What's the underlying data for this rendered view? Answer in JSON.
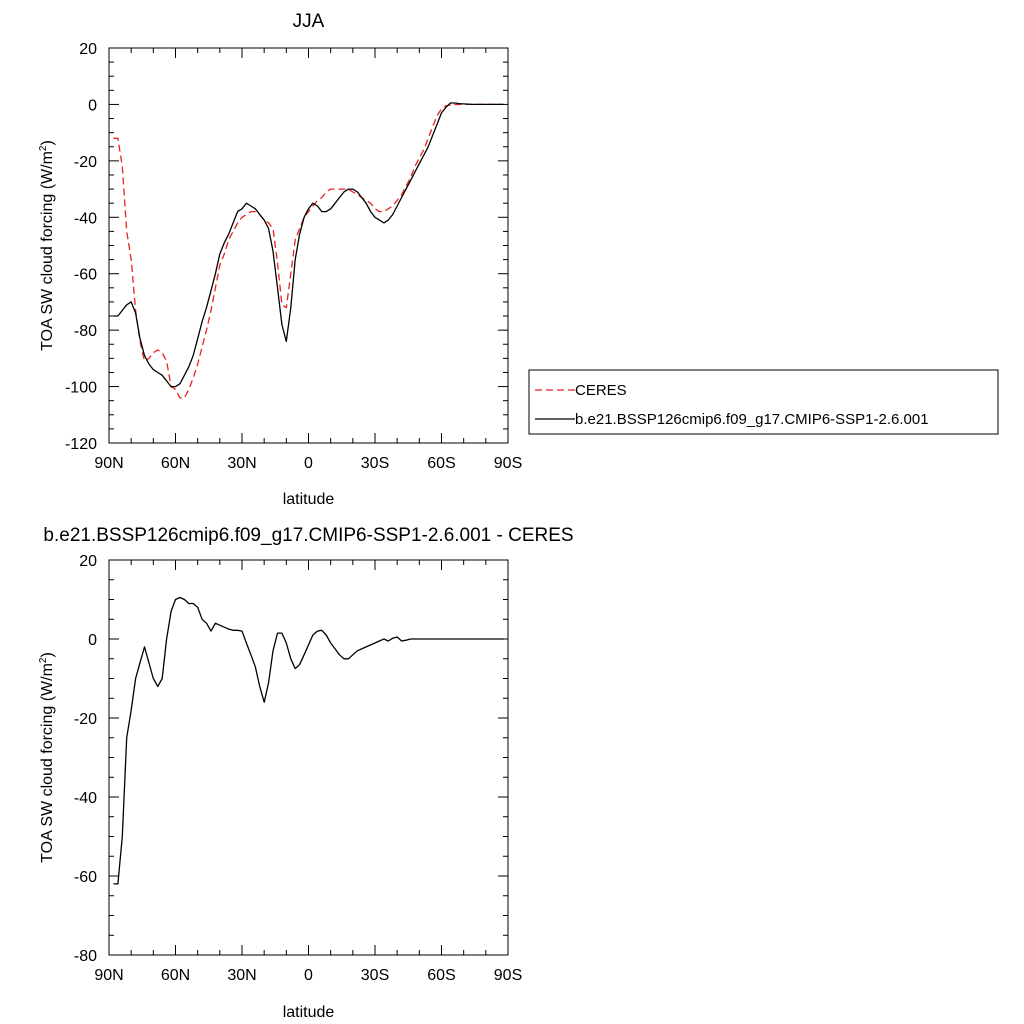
{
  "chart_data": [
    {
      "type": "line",
      "title": "JJA",
      "xlabel": "latitude",
      "ylabel": "TOA SW cloud forcing (W/m",
      "ylabel_sup": "2",
      "ylabel_close": ")",
      "xlim": [
        90,
        -90
      ],
      "ylim": [
        -120,
        20
      ],
      "xticks": [
        90,
        60,
        30,
        0,
        -30,
        -60,
        -90
      ],
      "xtick_labels": [
        "90N",
        "60N",
        "30N",
        "0",
        "30S",
        "60S",
        "90S"
      ],
      "yticks": [
        -120,
        -100,
        -80,
        -60,
        -40,
        -20,
        0,
        20
      ],
      "ytick_labels": [
        "-120",
        "-100",
        "-80",
        "-60",
        "-40",
        "-20",
        "0",
        "20"
      ],
      "legend": "right",
      "series": [
        {
          "name": "CERES",
          "color": "#e8231f",
          "dash": "dashed",
          "x": [
            88,
            86,
            84,
            82,
            80,
            78,
            76,
            74,
            72,
            70,
            68,
            66,
            64,
            62,
            60,
            58,
            56,
            54,
            52,
            50,
            48,
            46,
            44,
            42,
            40,
            38,
            36,
            34,
            32,
            30,
            28,
            26,
            24,
            22,
            20,
            18,
            16,
            14,
            12,
            10,
            8,
            6,
            4,
            2,
            0,
            -2,
            -4,
            -6,
            -8,
            -10,
            -12,
            -14,
            -16,
            -18,
            -20,
            -22,
            -24,
            -26,
            -28,
            -30,
            -32,
            -34,
            -36,
            -38,
            -40,
            -42,
            -44,
            -46,
            -48,
            -50,
            -52,
            -54,
            -56,
            -58,
            -60,
            -62,
            -64,
            -66,
            -68,
            -70,
            -72,
            -74,
            -76,
            -78,
            -80,
            -82,
            -84,
            -86,
            -88
          ],
          "values": [
            -12,
            -12,
            -22,
            -45,
            -55,
            -73,
            -84,
            -91,
            -90,
            -88,
            -87,
            -88,
            -91,
            -100,
            -101,
            -104,
            -104,
            -101,
            -97,
            -92,
            -86,
            -80,
            -73,
            -65,
            -57,
            -53,
            -48,
            -45,
            -42,
            -40,
            -39,
            -38,
            -38,
            -39,
            -41,
            -42,
            -44,
            -56,
            -71,
            -72,
            -60,
            -48,
            -44,
            -40,
            -38,
            -36,
            -34,
            -33,
            -31,
            -30,
            -30,
            -30,
            -30,
            -30,
            -31,
            -32,
            -33,
            -34,
            -35,
            -37,
            -38,
            -38,
            -37,
            -36,
            -34,
            -32,
            -29,
            -26,
            -22,
            -19,
            -16,
            -12,
            -8,
            -4,
            -1.5,
            -0.5,
            -0.2,
            -0.1,
            0,
            0,
            0,
            0,
            0,
            0,
            0,
            0,
            0,
            0,
            0
          ]
        },
        {
          "name": "b.e21.BSSP126cmip6.f09_g17.CMIP6-SSP1-2.6.001",
          "color": "#000000",
          "dash": "solid",
          "x": [
            88,
            86,
            84,
            82,
            80,
            78,
            76,
            74,
            72,
            70,
            68,
            66,
            64,
            62,
            60,
            58,
            56,
            54,
            52,
            50,
            48,
            46,
            44,
            42,
            40,
            38,
            36,
            34,
            32,
            30,
            28,
            26,
            24,
            22,
            20,
            18,
            16,
            14,
            12,
            10,
            8,
            6,
            4,
            2,
            0,
            -2,
            -4,
            -6,
            -8,
            -10,
            -12,
            -14,
            -16,
            -18,
            -20,
            -22,
            -24,
            -26,
            -28,
            -30,
            -32,
            -34,
            -36,
            -38,
            -40,
            -42,
            -44,
            -46,
            -48,
            -50,
            -52,
            -54,
            -56,
            -58,
            -60,
            -62,
            -64,
            -66,
            -68,
            -70,
            -72,
            -74,
            -76,
            -78,
            -80,
            -82,
            -84,
            -86,
            -88
          ],
          "values": [
            -75,
            -75,
            -73,
            -71,
            -70,
            -74,
            -83,
            -89,
            -92,
            -94,
            -95,
            -96,
            -98,
            -100,
            -100,
            -99,
            -96,
            -93,
            -89,
            -83,
            -77,
            -72,
            -66,
            -60,
            -53,
            -49,
            -46,
            -42,
            -38,
            -37,
            -35,
            -36,
            -37,
            -39,
            -41,
            -44,
            -52,
            -65,
            -78,
            -84,
            -72,
            -55,
            -46,
            -40,
            -37,
            -35,
            -36,
            -38,
            -38,
            -37,
            -35,
            -33,
            -31,
            -30,
            -30,
            -31,
            -33,
            -35,
            -38,
            -40,
            -41,
            -42,
            -41,
            -39,
            -36,
            -33,
            -30,
            -27,
            -24,
            -21,
            -18,
            -15,
            -11,
            -7,
            -3,
            -1,
            0.5,
            0.5,
            0.3,
            0.2,
            0.1,
            0,
            0,
            0,
            0,
            0,
            0,
            0,
            0
          ]
        }
      ]
    },
    {
      "type": "line",
      "title": "b.e21.BSSP126cmip6.f09_g17.CMIP6-SSP1-2.6.001 - CERES",
      "xlabel": "latitude",
      "ylabel": "TOA SW cloud forcing (W/m",
      "ylabel_sup": "2",
      "ylabel_close": ")",
      "xlim": [
        90,
        -90
      ],
      "ylim": [
        -80,
        20
      ],
      "xticks": [
        90,
        60,
        30,
        0,
        -30,
        -60,
        -90
      ],
      "xtick_labels": [
        "90N",
        "60N",
        "30N",
        "0",
        "30S",
        "60S",
        "90S"
      ],
      "yticks": [
        -80,
        -60,
        -40,
        -20,
        0,
        20
      ],
      "ytick_labels": [
        "-80",
        "-60",
        "-40",
        "-20",
        "0",
        "20"
      ],
      "series": [
        {
          "color": "#000000",
          "dash": "solid",
          "x": [
            88,
            86,
            84,
            82,
            80,
            78,
            76,
            74,
            72,
            70,
            68,
            66,
            64,
            62,
            60,
            58,
            56,
            54,
            52,
            50,
            48,
            46,
            44,
            42,
            40,
            38,
            36,
            34,
            32,
            30,
            28,
            26,
            24,
            22,
            20,
            18,
            16,
            14,
            12,
            10,
            8,
            6,
            4,
            2,
            0,
            -2,
            -4,
            -6,
            -8,
            -10,
            -12,
            -14,
            -16,
            -18,
            -20,
            -22,
            -24,
            -26,
            -28,
            -30,
            -32,
            -34,
            -36,
            -38,
            -40,
            -42,
            -44,
            -46,
            -48,
            -50,
            -52,
            -54,
            -56,
            -58,
            -60,
            -62,
            -64,
            -66,
            -68,
            -70,
            -72,
            -74,
            -76,
            -78,
            -80,
            -82,
            -84,
            -86,
            -88
          ],
          "values": [
            -62,
            -62,
            -50,
            -25,
            -18,
            -10,
            -6,
            -2,
            -6,
            -10,
            -12,
            -10,
            0,
            7,
            10,
            10.5,
            10,
            9,
            9,
            8,
            5,
            4,
            2,
            4,
            3.5,
            3,
            2.5,
            2.2,
            2.2,
            2,
            -1,
            -4,
            -7,
            -12,
            -16,
            -11,
            -3,
            1.5,
            1.5,
            -1,
            -5,
            -7.5,
            -6.5,
            -4,
            -1.5,
            1,
            2,
            2.2,
            1,
            -1,
            -2.5,
            -4,
            -5,
            -5,
            -4,
            -3,
            -2.5,
            -2,
            -1.5,
            -1,
            -0.5,
            0,
            -0.5,
            0.2,
            0.5,
            -0.5,
            -0.3,
            0,
            0,
            0,
            0,
            0,
            0,
            0,
            0,
            0,
            0,
            0,
            0,
            0,
            0,
            0,
            0,
            0,
            0,
            0,
            0,
            0,
            0
          ]
        }
      ]
    }
  ]
}
